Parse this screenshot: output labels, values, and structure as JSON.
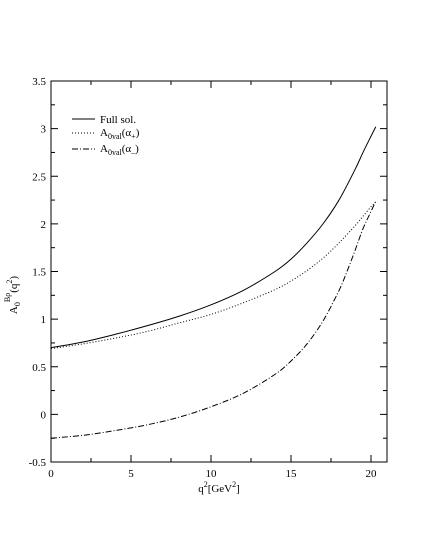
{
  "chart_data": {
    "type": "line",
    "xlabel": {
      "base": "q",
      "sup": "2",
      "unit": "[GeV",
      "unit_sup": "2",
      "unit_close": "]"
    },
    "ylabel": {
      "base": "A",
      "sub": "0",
      "sup": "Bρ",
      "arg_open": "(q",
      "arg_sup": "2",
      "arg_close": ")"
    },
    "xlim": [
      0,
      21
    ],
    "ylim": [
      -0.5,
      3.5
    ],
    "x_ticks": [
      "0",
      "5",
      "10",
      "15",
      "20"
    ],
    "y_ticks": [
      "-0.5",
      "0",
      "0.5",
      "1",
      "1.5",
      "2",
      "2.5",
      "3",
      "3.5"
    ],
    "x_tick_values": [
      0,
      5,
      10,
      15,
      20
    ],
    "y_tick_values": [
      -0.5,
      0,
      0.5,
      1,
      1.5,
      2,
      2.5,
      3,
      3.5
    ],
    "legend_position": "top-left",
    "grid": false,
    "series": [
      {
        "name": "Full sol.",
        "legend": {
          "text": "Full sol."
        },
        "style": "solid",
        "x": [
          0,
          2,
          4,
          6,
          8,
          10,
          12,
          14,
          15,
          16,
          17,
          18,
          19,
          19.5,
          20,
          20.3
        ],
        "values": [
          0.7,
          0.76,
          0.84,
          0.93,
          1.03,
          1.15,
          1.3,
          1.5,
          1.63,
          1.8,
          2.0,
          2.25,
          2.57,
          2.75,
          2.92,
          3.02
        ]
      },
      {
        "name": "A0val(α+)",
        "legend": {
          "base": "A",
          "sub": "0val",
          "arg": "(α",
          "arg_sub": "+",
          "close": ")"
        },
        "style": "dotted",
        "x": [
          0,
          2,
          4,
          6,
          8,
          10,
          12,
          14,
          15,
          16,
          17,
          18,
          19,
          19.5,
          20,
          20.3
        ],
        "values": [
          0.69,
          0.74,
          0.8,
          0.87,
          0.96,
          1.05,
          1.17,
          1.31,
          1.4,
          1.51,
          1.64,
          1.8,
          1.98,
          2.08,
          2.18,
          2.23
        ]
      },
      {
        "name": "A0val(α-)",
        "legend": {
          "base": "A",
          "sub": "0val",
          "arg": "(α",
          "arg_sub": "–",
          "close": ")"
        },
        "style": "dashdot",
        "x": [
          0,
          2,
          4,
          6,
          8,
          10,
          12,
          14,
          15,
          16,
          17,
          18,
          18.5,
          19,
          19.5,
          20,
          20.3
        ],
        "values": [
          -0.25,
          -0.22,
          -0.17,
          -0.11,
          -0.03,
          0.08,
          0.22,
          0.42,
          0.56,
          0.74,
          0.98,
          1.3,
          1.5,
          1.72,
          1.95,
          2.13,
          2.24
        ]
      }
    ]
  }
}
